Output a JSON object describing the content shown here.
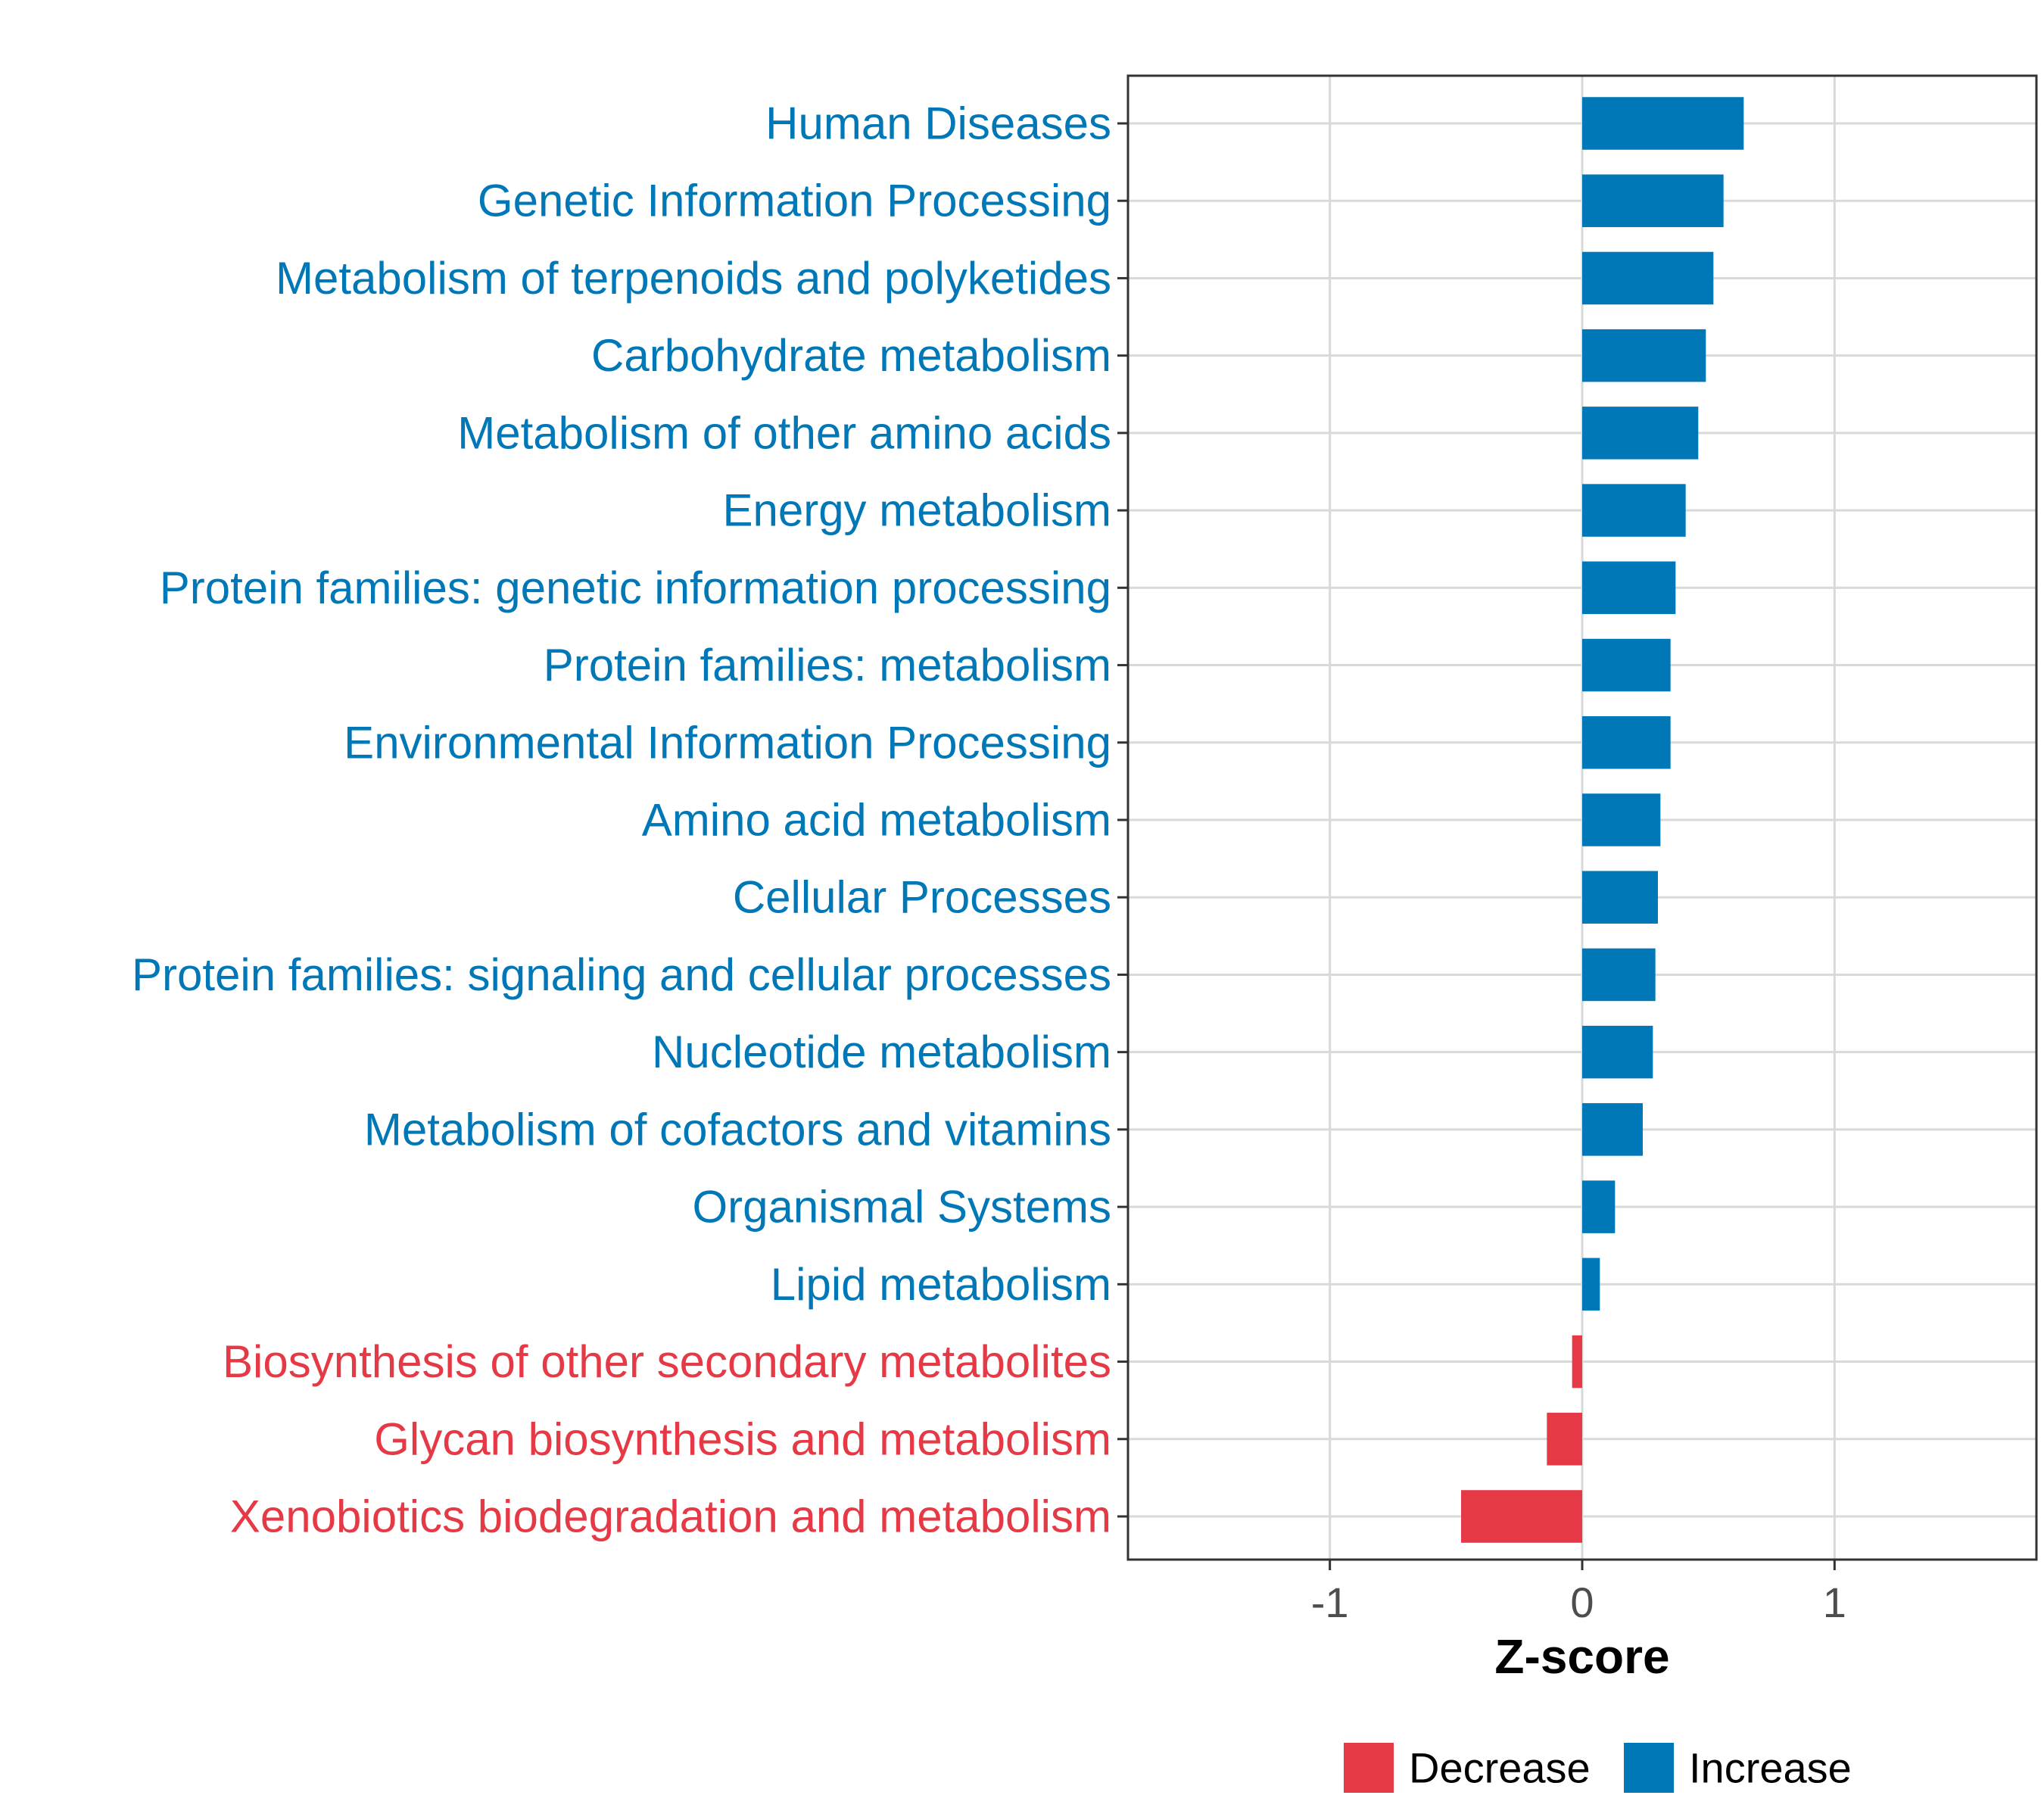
{
  "chart_data": {
    "type": "bar",
    "orientation": "horizontal",
    "xlabel": "Z-score",
    "xlim": [
      -1.8,
      1.8
    ],
    "xticks": [
      -1,
      0,
      1
    ],
    "xtick_labels": [
      "-1",
      "0",
      "1"
    ],
    "grid": true,
    "legend_position": "bottom",
    "categories": [
      "Human Diseases",
      "Genetic Information Processing",
      "Metabolism of terpenoids and polyketides",
      "Carbohydrate metabolism",
      "Metabolism of other amino acids",
      "Energy metabolism",
      "Protein families: genetic information processing",
      "Protein families: metabolism",
      "Environmental Information Processing",
      "Amino acid metabolism",
      "Cellular Processes",
      "Protein families: signaling and cellular processes",
      "Nucleotide metabolism",
      "Metabolism of cofactors and vitamins",
      "Organismal Systems",
      "Lipid metabolism",
      "Biosynthesis of other secondary metabolites",
      "Glycan biosynthesis and metabolism",
      "Xenobiotics biodegradation and metabolism"
    ],
    "values": [
      0.64,
      0.56,
      0.52,
      0.49,
      0.46,
      0.41,
      0.37,
      0.35,
      0.35,
      0.31,
      0.3,
      0.29,
      0.28,
      0.24,
      0.13,
      0.07,
      -0.04,
      -0.14,
      -0.48
    ],
    "groups": [
      "Increase",
      "Increase",
      "Increase",
      "Increase",
      "Increase",
      "Increase",
      "Increase",
      "Increase",
      "Increase",
      "Increase",
      "Increase",
      "Increase",
      "Increase",
      "Increase",
      "Increase",
      "Increase",
      "Decrease",
      "Decrease",
      "Decrease"
    ],
    "legend": [
      {
        "name": "Decrease",
        "color": "#E63946"
      },
      {
        "name": "Increase",
        "color": "#0077B6"
      }
    ]
  }
}
